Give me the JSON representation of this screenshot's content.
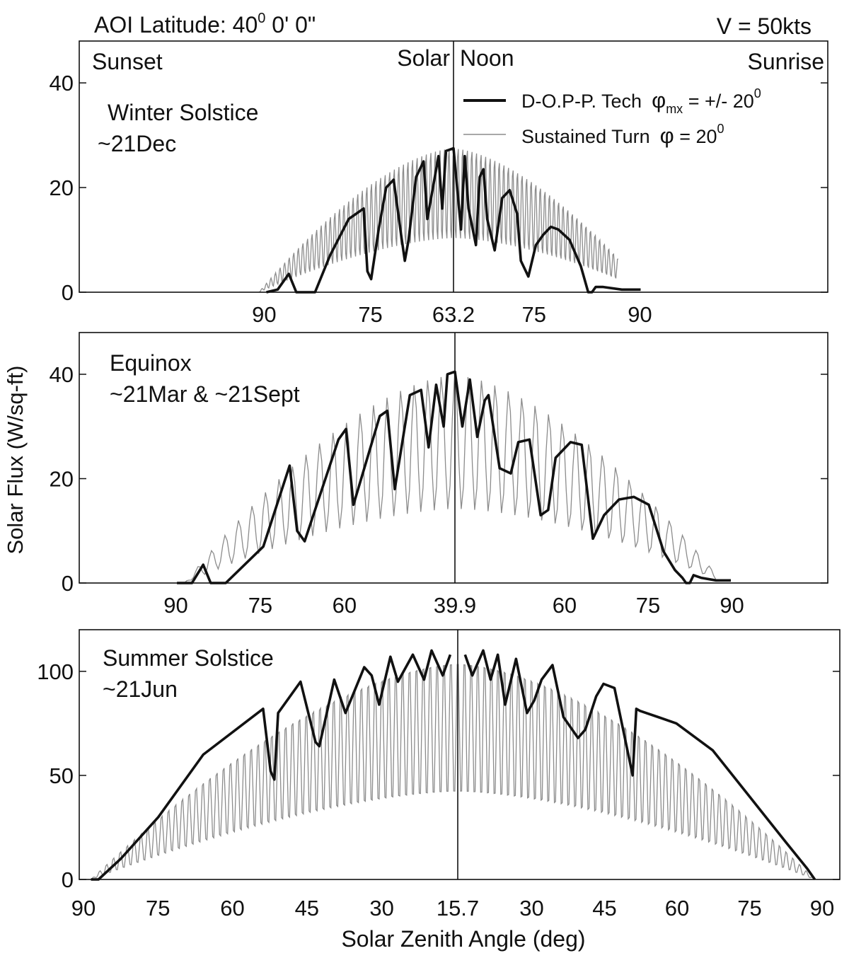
{
  "figure": {
    "header_left_main": "AOI Latitude: 40",
    "header_left_sup": "0",
    "header_left_rest": " 0' 0\"",
    "header_right": "V = 50kts",
    "top_labels": {
      "sunset": "Sunset",
      "solar": "Solar",
      "noon": "Noon",
      "sunrise": "Sunrise"
    },
    "ylabel": "Solar Flux (W/sq-ft)",
    "xlabel": "Solar Zenith Angle (deg)",
    "legend": {
      "dopp_main": "D-O.P-P. Tech",
      "dopp_phi": "φ",
      "dopp_sub": "mx",
      "dopp_eq": " = +/- 20",
      "dopp_sup": "0",
      "st_main": "Sustained Turn",
      "st_phi": "φ",
      "st_eq": " = 20",
      "st_sup": "0"
    },
    "colors": {
      "dopp": "#111111",
      "sustained": "#8c8c8c",
      "axis": "#111111"
    }
  },
  "chart_data": [
    {
      "type": "line",
      "title": "Winter Solstice",
      "subtitle": "~21Dec",
      "xlabel": "",
      "ylabel": "Solar Flux (W/sq-ft)",
      "ylim": [
        0,
        48
      ],
      "yticks": [
        0,
        20,
        40
      ],
      "x_domain": [
        -1,
        1
      ],
      "noon_zenith": 63.2,
      "xtick_labels": [
        "90",
        "75",
        "63.2",
        "75",
        "90"
      ],
      "xtick_positions": [
        -0.506,
        -0.222,
        0,
        0.215,
        0.498
      ],
      "series": [
        {
          "name": "D-O.P-P. Tech φmx = +/- 20°",
          "x": [
            -0.5,
            -0.47,
            -0.44,
            -0.42,
            -0.4,
            -0.38,
            -0.37,
            -0.33,
            -0.28,
            -0.24,
            -0.23,
            -0.22,
            -0.2,
            -0.18,
            -0.16,
            -0.14,
            -0.13,
            -0.12,
            -0.1,
            -0.08,
            -0.07,
            -0.06,
            -0.04,
            -0.03,
            -0.02,
            0.0,
            0.02,
            0.03,
            0.04,
            0.06,
            0.07,
            0.08,
            0.09,
            0.11,
            0.13,
            0.15,
            0.17,
            0.18,
            0.2,
            0.21,
            0.22,
            0.24,
            0.26,
            0.28,
            0.31,
            0.34,
            0.36,
            0.37,
            0.38,
            0.4,
            0.45,
            0.5
          ],
          "y": [
            0,
            0.5,
            3.5,
            0,
            0,
            0,
            0,
            7,
            14,
            16,
            4,
            2.5,
            12,
            20,
            21.5,
            11,
            6,
            10,
            22,
            25,
            14,
            18,
            26,
            16,
            27,
            27.5,
            12,
            26,
            16,
            9,
            22,
            23.5,
            14,
            8,
            18,
            19.5,
            15,
            6,
            3,
            6,
            9,
            11,
            12.5,
            12,
            10,
            5,
            0,
            0,
            1,
            1,
            0.5,
            0.5
          ]
        },
        {
          "name": "Sustained Turn φ = 20°",
          "osc": true,
          "x_start": -0.52,
          "x_end": 0.44,
          "period": 0.0122,
          "envelope_max": 28
        }
      ]
    },
    {
      "type": "line",
      "title": "Equinox",
      "subtitle": "~21Mar & ~21Sept",
      "xlabel": "",
      "ylabel": "Solar Flux (W/sq-ft)",
      "ylim": [
        0,
        48
      ],
      "yticks": [
        0,
        20,
        40
      ],
      "x_domain": [
        -1,
        1
      ],
      "noon_zenith": 39.9,
      "xtick_labels": [
        "90",
        "75",
        "60",
        "39.9",
        "60",
        "75",
        "90"
      ],
      "xtick_positions": [
        -0.743,
        -0.518,
        -0.294,
        0,
        0.294,
        0.518,
        0.743
      ],
      "series": [
        {
          "name": "D-O.P-P. Tech φmx = +/- 20°",
          "x": [
            -0.74,
            -0.7,
            -0.67,
            -0.65,
            -0.63,
            -0.61,
            -0.51,
            -0.44,
            -0.42,
            -0.4,
            -0.31,
            -0.29,
            -0.27,
            -0.2,
            -0.18,
            -0.16,
            -0.12,
            -0.09,
            -0.07,
            -0.05,
            -0.03,
            -0.02,
            0.0,
            0.02,
            0.04,
            0.06,
            0.08,
            0.09,
            0.12,
            0.15,
            0.17,
            0.2,
            0.23,
            0.25,
            0.27,
            0.31,
            0.34,
            0.37,
            0.4,
            0.44,
            0.48,
            0.52,
            0.56,
            0.59,
            0.61,
            0.62,
            0.63,
            0.64,
            0.66,
            0.7,
            0.74
          ],
          "y": [
            0,
            0,
            3.5,
            0,
            0,
            0,
            7,
            22.5,
            10,
            8,
            27.5,
            29.5,
            15,
            32,
            33,
            18,
            36,
            37,
            26,
            38,
            30,
            40,
            40.5,
            30,
            39,
            28,
            35,
            36,
            22,
            21,
            27,
            27.5,
            13,
            14,
            24,
            27,
            26.5,
            8.5,
            13,
            16,
            16.5,
            15,
            6,
            2.5,
            1,
            0,
            0,
            1.5,
            1,
            0.5,
            0.5
          ]
        },
        {
          "name": "Sustained Turn φ = 20°",
          "osc": true,
          "x_start": -0.72,
          "x_end": 0.7,
          "period": 0.036,
          "envelope_max": 40
        }
      ]
    },
    {
      "type": "line",
      "title": "Summer Solstice",
      "subtitle": "~21Jun",
      "xlabel": "Solar Zenith Angle (deg)",
      "ylabel": "Solar Flux (W/sq-ft)",
      "ylim": [
        0,
        120
      ],
      "yticks": [
        0,
        50,
        100
      ],
      "x_domain": [
        -1,
        1
      ],
      "noon_zenith": 15.7,
      "xtick_labels": [
        "90",
        "75",
        "60",
        "45",
        "30",
        "15.7",
        "30",
        "45",
        "60",
        "75",
        "90"
      ],
      "xtick_positions": [
        -1,
        -0.801,
        -0.602,
        -0.403,
        -0.203,
        0,
        0.203,
        0.403,
        0.602,
        0.801,
        1
      ],
      "series": [
        {
          "name": "D-O.P-P. Tech φmx = +/- 20°",
          "x": [
            -0.98,
            -0.96,
            -0.9,
            -0.8,
            -0.68,
            -0.52,
            -0.5,
            -0.49,
            -0.48,
            -0.42,
            -0.38,
            -0.37,
            -0.35,
            -0.33,
            -0.3,
            -0.25,
            -0.23,
            -0.21,
            -0.18,
            -0.16,
            -0.12,
            -0.09,
            -0.07,
            -0.04,
            -0.02,
            0.0,
            0.02,
            0.04,
            0.07,
            0.09,
            0.11,
            0.13,
            0.16,
            0.19,
            0.21,
            0.23,
            0.26,
            0.29,
            0.33,
            0.35,
            0.38,
            0.4,
            0.43,
            0.48,
            0.49,
            0.5,
            0.55,
            0.6,
            0.7,
            0.8,
            0.9,
            0.96,
            0.98
          ],
          "y": [
            0,
            0,
            10,
            30,
            60,
            82,
            52,
            48,
            80,
            95,
            66,
            64,
            80,
            96,
            80,
            102,
            98,
            84,
            107,
            95,
            108,
            96,
            110,
            98,
            108,
            null,
            108,
            98,
            110,
            96,
            108,
            84,
            106,
            80,
            86,
            96,
            103,
            78,
            68,
            72,
            88,
            94,
            92,
            50,
            82,
            81,
            78,
            75,
            62,
            40,
            18,
            5,
            0
          ],
          "gap_at_noon": true
        },
        {
          "name": "Sustained Turn φ = 20°",
          "osc": true,
          "x_start": -0.98,
          "x_end": 0.98,
          "period": 0.0184,
          "envelope_max": 108
        }
      ]
    }
  ]
}
